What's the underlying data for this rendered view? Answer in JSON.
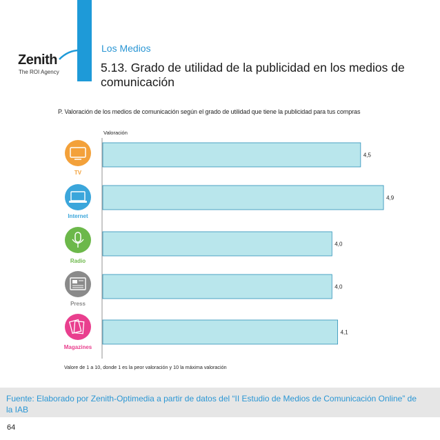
{
  "brand": {
    "name": "Zenith",
    "tagline": "The ROI Agency"
  },
  "header": {
    "section": "Los Medios",
    "title": "5.13.  Grado de utilidad de la publicidad en los medios de comunicación"
  },
  "question": "P. Valoración de los medios de comunicación según el grado de utilidad que tiene la publicidad para tus compras",
  "colors": {
    "bar_fill": "#b9e6ec",
    "bar_stroke": "#2a8fb8",
    "tv": "#f3a13a",
    "internet": "#3ba6db",
    "radio": "#6cb84a",
    "press": "#8a8a8a",
    "magazines": "#e93f8e",
    "accent": "#1e9ad8"
  },
  "chart_data": {
    "type": "bar",
    "orientation": "horizontal",
    "title": "Grado de utilidad de la publicidad en los medios de comunicación",
    "axis_label": "Valoración",
    "categories": [
      "TV",
      "Internet",
      "Radio",
      "Press",
      "Magazines"
    ],
    "values": [
      4.5,
      4.9,
      4.0,
      4.0,
      4.1
    ],
    "value_labels": [
      "4,5",
      "4,9",
      "4,0",
      "4,0",
      "4,1"
    ],
    "xlim": [
      0,
      5.2
    ],
    "grid": false
  },
  "icons": [
    {
      "name": "tv-icon",
      "label": "TV"
    },
    {
      "name": "laptop-icon",
      "label": "Internet"
    },
    {
      "name": "microphone-icon",
      "label": "Radio"
    },
    {
      "name": "newspaper-icon",
      "label": "Press"
    },
    {
      "name": "magazines-icon",
      "label": "Magazines"
    }
  ],
  "note": "Valore de 1 a 10, donde 1 es la peor valoración y 10 la máxima valoración",
  "source": "Fuente: Elaborado por Zenith-Optimedia a partir de datos del “II Estudio de Medios de Comunicación Online” de la IAB",
  "page_number": "64"
}
